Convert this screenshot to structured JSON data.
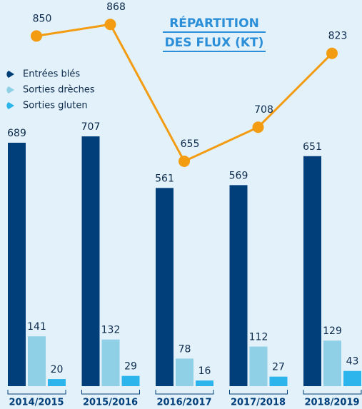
{
  "chart_data": {
    "type": "bar",
    "title": [
      "RÉPARTITION",
      "DES FLUX (KT)"
    ],
    "categories": [
      "2014/2015",
      "2015/2016",
      "2016/2017",
      "2017/2018",
      "2018/2019"
    ],
    "series": [
      {
        "name": "Entrées blés",
        "color": "#003f7a",
        "values": [
          689,
          707,
          561,
          569,
          651
        ]
      },
      {
        "name": "Sorties drèches",
        "color": "#8fd0e6",
        "values": [
          141,
          132,
          78,
          112,
          129
        ]
      },
      {
        "name": "Sorties gluten",
        "color": "#2bb5ec",
        "values": [
          20,
          29,
          16,
          27,
          43
        ]
      },
      {
        "type": "line",
        "axis": "y2",
        "color": "#f39c12",
        "values": [
          850,
          868,
          655,
          708,
          823
        ]
      }
    ],
    "ylim": [
      0,
      1093
    ],
    "y2lim": [
      305,
      906
    ],
    "legend": "upper left",
    "background": "#e3f1fb"
  }
}
